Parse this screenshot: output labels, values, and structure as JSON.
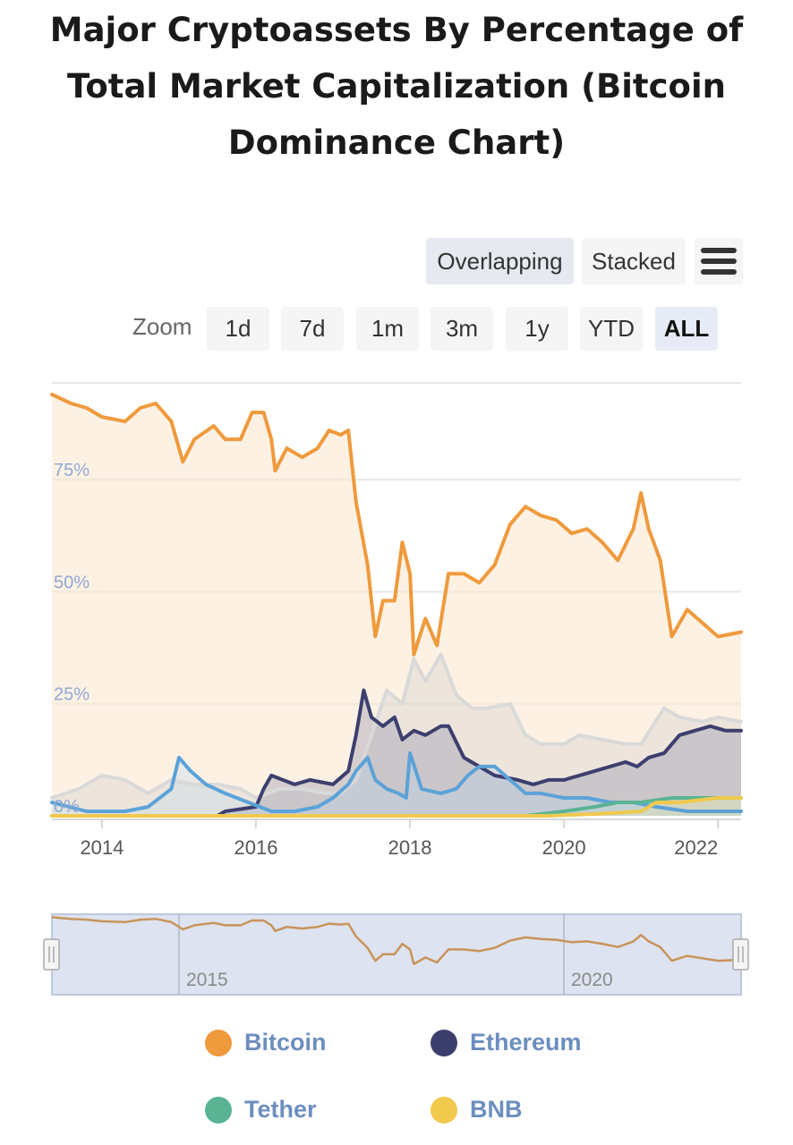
{
  "title": "Major Cryptoassets By Percentage of Total Market Capitalization (Bitcoin Dominance Chart)",
  "view_modes": [
    "Overlapping",
    "Stacked"
  ],
  "selected_view_mode": "Overlapping",
  "menu_icon": "hamburger-menu-icon",
  "zoom": {
    "label": "Zoom",
    "options": [
      "1d",
      "7d",
      "1m",
      "3m",
      "1y",
      "YTD",
      "ALL"
    ],
    "selected": "ALL"
  },
  "colors": {
    "bitcoin": "#ef9a3c",
    "ethereum": "#3c3f6e",
    "tether": "#5ab494",
    "bnb": "#f0c94d",
    "light_blue": "#5ba2d8",
    "gray": "#d9d9d9"
  },
  "chart_data": {
    "type": "line",
    "title": "Major Cryptoassets By Percentage of Total Market Capitalization (Bitcoin Dominance Chart)",
    "xlabel": "",
    "ylabel": "",
    "xlim": [
      2013.35,
      2022.3
    ],
    "ylim": [
      0,
      95
    ],
    "y_ticks": [
      "0%",
      "25%",
      "50%",
      "75%"
    ],
    "x_ticks": [
      "2014",
      "2016",
      "2018",
      "2020",
      "2022"
    ],
    "grid": true,
    "series": [
      {
        "name": "Bitcoin",
        "color": "#ef9a3c",
        "points": [
          [
            2013.35,
            94
          ],
          [
            2013.6,
            92
          ],
          [
            2013.8,
            91
          ],
          [
            2014.0,
            89
          ],
          [
            2014.3,
            88
          ],
          [
            2014.5,
            91
          ],
          [
            2014.7,
            92
          ],
          [
            2014.9,
            88
          ],
          [
            2015.05,
            79
          ],
          [
            2015.2,
            84
          ],
          [
            2015.45,
            87
          ],
          [
            2015.6,
            84
          ],
          [
            2015.8,
            84
          ],
          [
            2015.95,
            90
          ],
          [
            2016.1,
            90
          ],
          [
            2016.2,
            84
          ],
          [
            2016.25,
            77
          ],
          [
            2016.4,
            82
          ],
          [
            2016.6,
            80
          ],
          [
            2016.8,
            82
          ],
          [
            2016.95,
            86
          ],
          [
            2017.1,
            85
          ],
          [
            2017.2,
            86
          ],
          [
            2017.3,
            70
          ],
          [
            2017.45,
            56
          ],
          [
            2017.55,
            40
          ],
          [
            2017.65,
            48
          ],
          [
            2017.8,
            48
          ],
          [
            2017.9,
            61
          ],
          [
            2018.0,
            54
          ],
          [
            2018.05,
            36
          ],
          [
            2018.2,
            44
          ],
          [
            2018.35,
            38
          ],
          [
            2018.5,
            54
          ],
          [
            2018.7,
            54
          ],
          [
            2018.9,
            52
          ],
          [
            2019.1,
            56
          ],
          [
            2019.3,
            65
          ],
          [
            2019.5,
            69
          ],
          [
            2019.7,
            67
          ],
          [
            2019.9,
            66
          ],
          [
            2020.1,
            63
          ],
          [
            2020.3,
            64
          ],
          [
            2020.5,
            61
          ],
          [
            2020.7,
            57
          ],
          [
            2020.9,
            64
          ],
          [
            2021.0,
            72
          ],
          [
            2021.1,
            64
          ],
          [
            2021.25,
            57
          ],
          [
            2021.4,
            40
          ],
          [
            2021.6,
            46
          ],
          [
            2021.8,
            43
          ],
          [
            2022.0,
            40
          ],
          [
            2022.3,
            41
          ]
        ]
      },
      {
        "name": "Ethereum",
        "color": "#3c3f6e",
        "points": [
          [
            2013.35,
            0
          ],
          [
            2015.5,
            0
          ],
          [
            2015.6,
            1
          ],
          [
            2016.0,
            2
          ],
          [
            2016.1,
            6
          ],
          [
            2016.2,
            9
          ],
          [
            2016.5,
            7
          ],
          [
            2016.7,
            8
          ],
          [
            2017.0,
            7
          ],
          [
            2017.2,
            10
          ],
          [
            2017.3,
            18
          ],
          [
            2017.4,
            28
          ],
          [
            2017.5,
            22
          ],
          [
            2017.65,
            20
          ],
          [
            2017.8,
            22
          ],
          [
            2017.9,
            17
          ],
          [
            2018.05,
            19
          ],
          [
            2018.2,
            18
          ],
          [
            2018.4,
            20
          ],
          [
            2018.5,
            20
          ],
          [
            2018.7,
            13
          ],
          [
            2018.9,
            11
          ],
          [
            2019.1,
            9
          ],
          [
            2019.4,
            8
          ],
          [
            2019.6,
            7
          ],
          [
            2019.8,
            8
          ],
          [
            2020.0,
            8
          ],
          [
            2020.2,
            9
          ],
          [
            2020.4,
            10
          ],
          [
            2020.6,
            11
          ],
          [
            2020.8,
            12
          ],
          [
            2020.95,
            11
          ],
          [
            2021.1,
            13
          ],
          [
            2021.3,
            14
          ],
          [
            2021.5,
            18
          ],
          [
            2021.7,
            19
          ],
          [
            2021.9,
            20
          ],
          [
            2022.1,
            19
          ],
          [
            2022.3,
            19
          ]
        ]
      },
      {
        "name": "Tether",
        "color": "#5ab494",
        "points": [
          [
            2013.35,
            0
          ],
          [
            2019.5,
            0
          ],
          [
            2020.0,
            1
          ],
          [
            2020.4,
            2
          ],
          [
            2020.7,
            3
          ],
          [
            2021.0,
            3
          ],
          [
            2021.4,
            4
          ],
          [
            2021.8,
            4
          ],
          [
            2022.3,
            4
          ]
        ]
      },
      {
        "name": "BNB",
        "color": "#f0c94d",
        "points": [
          [
            2013.35,
            0
          ],
          [
            2019.8,
            0
          ],
          [
            2020.5,
            0.5
          ],
          [
            2021.0,
            1
          ],
          [
            2021.2,
            3
          ],
          [
            2021.5,
            3
          ],
          [
            2022.0,
            4
          ],
          [
            2022.3,
            4
          ]
        ]
      },
      {
        "name": "",
        "color": "#5ba2d8",
        "points": [
          [
            2013.35,
            3
          ],
          [
            2013.8,
            1
          ],
          [
            2014.3,
            1
          ],
          [
            2014.6,
            2
          ],
          [
            2014.9,
            6
          ],
          [
            2015.0,
            13
          ],
          [
            2015.15,
            10
          ],
          [
            2015.35,
            7
          ],
          [
            2015.6,
            5
          ],
          [
            2015.9,
            3
          ],
          [
            2016.2,
            1
          ],
          [
            2016.5,
            1
          ],
          [
            2016.8,
            2
          ],
          [
            2017.0,
            4
          ],
          [
            2017.2,
            7
          ],
          [
            2017.3,
            10
          ],
          [
            2017.45,
            13
          ],
          [
            2017.55,
            8
          ],
          [
            2017.7,
            6
          ],
          [
            2017.85,
            5
          ],
          [
            2017.95,
            4
          ],
          [
            2018.0,
            14
          ],
          [
            2018.15,
            6
          ],
          [
            2018.4,
            5
          ],
          [
            2018.6,
            6
          ],
          [
            2018.75,
            9
          ],
          [
            2018.9,
            11
          ],
          [
            2019.1,
            11
          ],
          [
            2019.3,
            8
          ],
          [
            2019.5,
            5
          ],
          [
            2019.7,
            5
          ],
          [
            2020.0,
            4
          ],
          [
            2020.3,
            4
          ],
          [
            2020.6,
            3
          ],
          [
            2020.9,
            3
          ],
          [
            2021.2,
            2
          ],
          [
            2021.6,
            1
          ],
          [
            2022.0,
            1
          ],
          [
            2022.3,
            1
          ]
        ]
      },
      {
        "name": "",
        "color": "#d9d9d9",
        "points": [
          [
            2013.35,
            4
          ],
          [
            2013.7,
            6
          ],
          [
            2014.0,
            9
          ],
          [
            2014.3,
            8
          ],
          [
            2014.6,
            5
          ],
          [
            2014.9,
            8
          ],
          [
            2015.2,
            7
          ],
          [
            2015.5,
            7
          ],
          [
            2015.8,
            6
          ],
          [
            2016.0,
            4
          ],
          [
            2016.3,
            6
          ],
          [
            2016.6,
            6
          ],
          [
            2016.9,
            5
          ],
          [
            2017.1,
            5
          ],
          [
            2017.3,
            8
          ],
          [
            2017.5,
            18
          ],
          [
            2017.7,
            28
          ],
          [
            2017.9,
            25
          ],
          [
            2018.05,
            35
          ],
          [
            2018.2,
            30
          ],
          [
            2018.4,
            36
          ],
          [
            2018.6,
            27
          ],
          [
            2018.8,
            24
          ],
          [
            2019.0,
            24
          ],
          [
            2019.3,
            25
          ],
          [
            2019.5,
            18
          ],
          [
            2019.7,
            16
          ],
          [
            2020.0,
            16
          ],
          [
            2020.2,
            18
          ],
          [
            2020.5,
            17
          ],
          [
            2020.8,
            16
          ],
          [
            2021.0,
            16
          ],
          [
            2021.3,
            24
          ],
          [
            2021.5,
            22
          ],
          [
            2021.8,
            21
          ],
          [
            2022.0,
            22
          ],
          [
            2022.3,
            21
          ]
        ]
      }
    ],
    "navigator": {
      "x_labels": [
        "2015",
        "2020"
      ],
      "series": "Bitcoin"
    }
  },
  "legend": [
    {
      "name": "Bitcoin",
      "color": "#ef9a3c"
    },
    {
      "name": "Ethereum",
      "color": "#3c3f6e"
    },
    {
      "name": "Tether",
      "color": "#5ab494"
    },
    {
      "name": "BNB",
      "color": "#f0c94d"
    }
  ]
}
